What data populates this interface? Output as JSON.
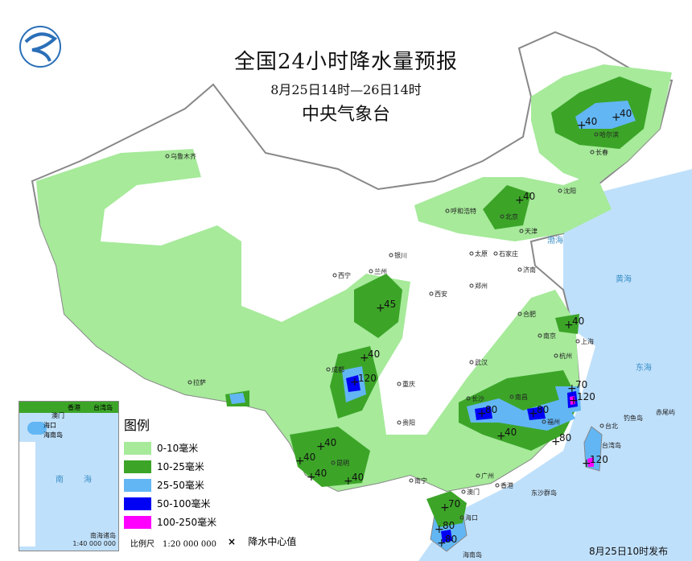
{
  "header": {
    "title": "全国24小时降水量预报",
    "period": "8月25日14时—26日14时",
    "issuer": "中央气象台"
  },
  "legend": {
    "title": "图例",
    "items": [
      {
        "label": "0-10毫米",
        "color": "#a6ea9a"
      },
      {
        "label": "10-25毫米",
        "color": "#3ca528"
      },
      {
        "label": "25-50毫米",
        "color": "#62b6f4"
      },
      {
        "label": "50-100毫米",
        "color": "#0000f5"
      },
      {
        "label": "100-250毫米",
        "color": "#ff00ff"
      }
    ]
  },
  "scale": "比例尺　1:20 000 000",
  "center_marker": {
    "symbol": "×",
    "label": "降水中心值"
  },
  "inset": {
    "label": "南海诸岛",
    "scale": "1:40 000 000",
    "places": [
      "香港",
      "澳门",
      "台湾岛",
      "海口",
      "海南岛",
      "南",
      "海"
    ]
  },
  "published": "8月25日10时发布",
  "sea_color": "#bfe0fb",
  "precip_centers": [
    "40",
    "40",
    "40",
    "45",
    "40",
    "120",
    "40",
    "40",
    "40",
    "40",
    "40",
    "70",
    "120",
    "80",
    "80",
    "40",
    "80",
    "120",
    "70",
    "80",
    "80"
  ],
  "cities": [
    "乌鲁木齐",
    "哈尔滨",
    "长春",
    "沈阳",
    "呼和浩特",
    "北京",
    "天津",
    "太原",
    "石家庄",
    "济南",
    "银川",
    "兰州",
    "西宁",
    "西安",
    "郑州",
    "合肥",
    "南京",
    "上海",
    "武汉",
    "杭州",
    "拉萨",
    "成都",
    "重庆",
    "贵阳",
    "长沙",
    "南昌",
    "福州",
    "台北",
    "昆明",
    "南宁",
    "广州",
    "澳门",
    "香港",
    "海口"
  ],
  "seas": [
    "渤海",
    "黄海",
    "东海",
    "钓鱼岛",
    "赤尾屿",
    "台湾岛",
    "东沙群岛",
    "海南岛"
  ]
}
